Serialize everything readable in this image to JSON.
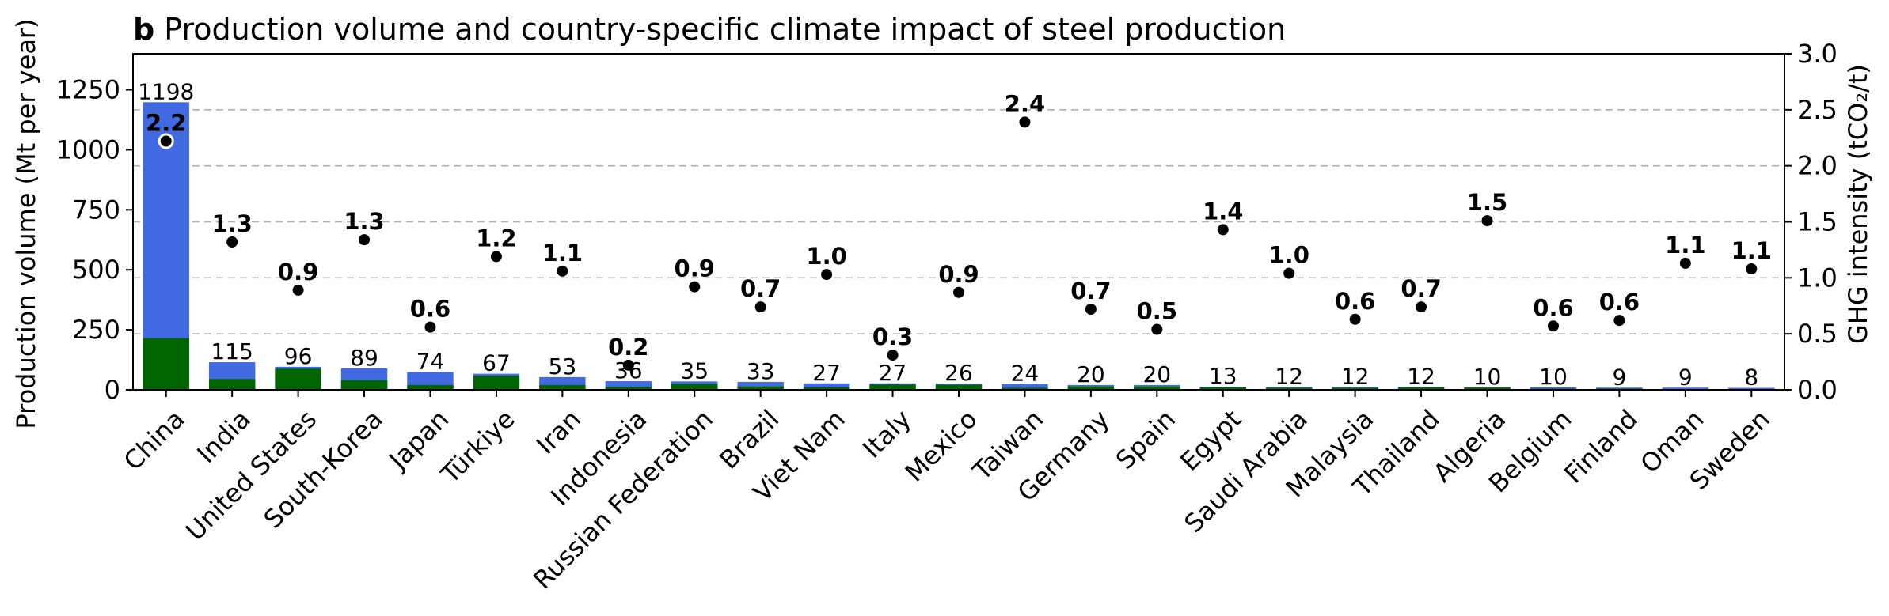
{
  "chart_data": {
    "type": "bar",
    "title_tag": "b",
    "title": "Production volume and country-specific climate impact of steel production",
    "ylabel_left": "Production volume (Mt per year)",
    "ylabel_right": "GHG intensity (tCO₂/t)",
    "ylim_left": [
      0,
      1400
    ],
    "yticks_left": [
      0,
      250,
      500,
      750,
      1000,
      1250
    ],
    "ylim_right": [
      0,
      3.0
    ],
    "yticks_right": [
      "0.0",
      "0.5",
      "1.0",
      "1.5",
      "2.0",
      "2.5",
      "3.0"
    ],
    "grid": "horizontal dashed",
    "colors": {
      "total": "#4169e1",
      "green_share": "#006400",
      "marker": "#000000"
    },
    "categories": [
      "China",
      "India",
      "United States",
      "South-Korea",
      "Japan",
      "Türkiye",
      "Iran",
      "Indonesia",
      "Russian Federation",
      "Brazil",
      "Viet Nam",
      "Italy",
      "Mexico",
      "Taiwan",
      "Germany",
      "Spain",
      "Egypt",
      "Saudi Arabia",
      "Malaysia",
      "Thailand",
      "Algeria",
      "Belgium",
      "Finland",
      "Oman",
      "Sweden"
    ],
    "series": [
      {
        "values": [
          1198,
          115,
          96,
          89,
          74,
          67,
          53,
          36,
          35,
          33,
          27,
          27,
          26,
          24,
          20,
          20,
          13,
          12,
          12,
          12,
          10,
          10,
          9,
          9,
          8
        ]
      },
      {
        "values": [
          215,
          45,
          88,
          40,
          20,
          58,
          20,
          12,
          25,
          14,
          10,
          22,
          21,
          8,
          14,
          14,
          10,
          8,
          8,
          10,
          9,
          5,
          5,
          3,
          3
        ]
      },
      {
        "values": [
          2.22,
          1.32,
          0.89,
          1.34,
          0.56,
          1.19,
          1.06,
          0.22,
          0.92,
          0.74,
          1.03,
          0.31,
          0.87,
          2.39,
          0.72,
          0.54,
          1.43,
          1.04,
          0.63,
          0.74,
          1.51,
          0.57,
          0.62,
          1.13,
          1.08
        ]
      }
    ],
    "bar_labels": [
      "1198",
      "115",
      "96",
      "89",
      "74",
      "67",
      "53",
      "36",
      "35",
      "33",
      "27",
      "27",
      "26",
      "24",
      "20",
      "20",
      "13",
      "12",
      "12",
      "12",
      "10",
      "10",
      "9",
      "9",
      "8"
    ],
    "ghg_labels": [
      "2.2",
      "1.3",
      "0.9",
      "1.3",
      "0.6",
      "1.2",
      "1.1",
      "0.2",
      "0.9",
      "0.7",
      "1.0",
      "0.3",
      "0.9",
      "2.4",
      "0.7",
      "0.5",
      "1.4",
      "1.0",
      "0.6",
      "0.7",
      "1.5",
      "0.6",
      "0.6",
      "1.1",
      "1.1"
    ]
  }
}
